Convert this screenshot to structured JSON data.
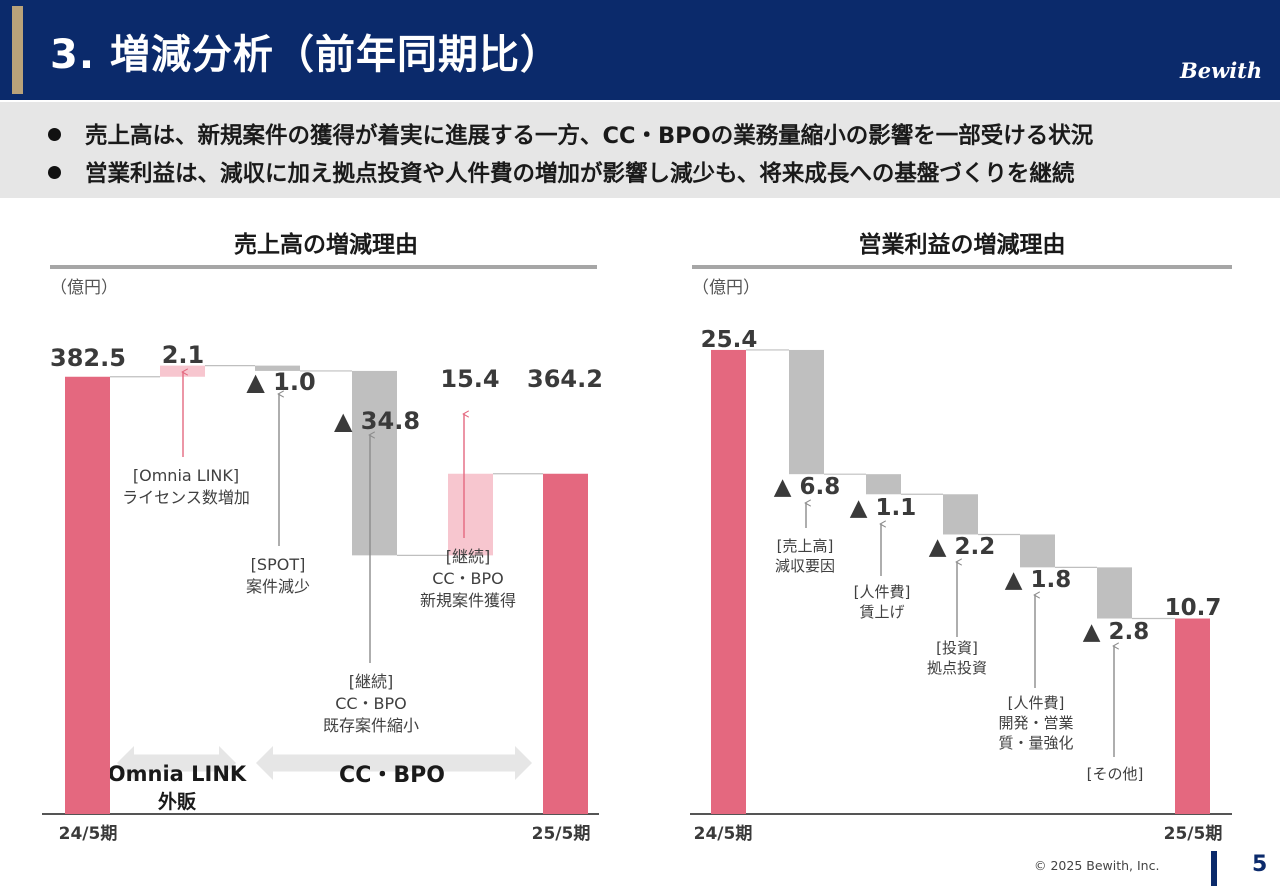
{
  "header": {
    "title": "3. 増減分析（前年同期比）",
    "logo": "Bewith"
  },
  "summary": {
    "line1": "売上高は、新規案件の獲得が着実に進展する一方、CC・BPOの業務量縮小の影響を一部受ける状況",
    "line2": "営業利益は、減収に加え拠点投資や人件費の増加が影響し減少も、将来成長への基盤づくりを継続"
  },
  "colors": {
    "total_bar": "#e4687f",
    "increase_bar": "#f7c6cf",
    "decrease_bar": "#bfbfbf",
    "header_bg": "#0b2a6b",
    "gold": "#b9a27a"
  },
  "chart_data": [
    {
      "type": "bar",
      "subtype": "waterfall",
      "title": "売上高の増減理由",
      "unit_label": "（億円）",
      "categories": [
        "24/5期",
        "[Omnia LINK] ライセンス数増加",
        "[SPOT] 案件減少",
        "[継続] CC・BPO 既存案件縮小",
        "[継続] CC・BPO 新規案件獲得",
        "25/5期"
      ],
      "steps": [
        {
          "kind": "total",
          "value": 382.5,
          "label": "382.5",
          "category": "24/5期"
        },
        {
          "kind": "increase",
          "value": 2.1,
          "label": "2.1",
          "annotation": [
            "[Omnia LINK]",
            "ライセンス数増加"
          ]
        },
        {
          "kind": "decrease",
          "value": -1.0,
          "label": "▲ 1.0",
          "annotation": [
            "[SPOT]",
            "案件減少"
          ]
        },
        {
          "kind": "decrease",
          "value": -34.8,
          "label": "▲ 34.8",
          "annotation": [
            "[継続]",
            "CC・BPO",
            "既存案件縮小"
          ]
        },
        {
          "kind": "increase",
          "value": 15.4,
          "label": "15.4",
          "annotation": [
            "[継続]",
            "CC・BPO",
            "新規案件獲得"
          ]
        },
        {
          "kind": "total",
          "value": 364.2,
          "label": "364.2",
          "category": "25/5期"
        }
      ],
      "segments": [
        {
          "label": [
            "Omnia LINK",
            "外販"
          ]
        },
        {
          "label": [
            "CC・BPO"
          ]
        }
      ]
    },
    {
      "type": "bar",
      "subtype": "waterfall",
      "title": "営業利益の増減理由",
      "unit_label": "（億円）",
      "categories": [
        "24/5期",
        "[売上高] 減収要因",
        "[人件費] 賃上げ",
        "[投資] 拠点投資",
        "[人件費] 開発・営業 質・量強化",
        "[その他]",
        "25/5期"
      ],
      "steps": [
        {
          "kind": "total",
          "value": 25.4,
          "label": "25.4",
          "category": "24/5期"
        },
        {
          "kind": "decrease",
          "value": -6.8,
          "label": "▲ 6.8",
          "annotation": [
            "[売上高]",
            "減収要因"
          ]
        },
        {
          "kind": "decrease",
          "value": -1.1,
          "label": "▲ 1.1",
          "annotation": [
            "[人件費]",
            "賃上げ"
          ]
        },
        {
          "kind": "decrease",
          "value": -2.2,
          "label": "▲ 2.2",
          "annotation": [
            "[投資]",
            "拠点投資"
          ]
        },
        {
          "kind": "decrease",
          "value": -1.8,
          "label": "▲ 1.8",
          "annotation": [
            "[人件費]",
            "開発・営業",
            "質・量強化"
          ]
        },
        {
          "kind": "decrease",
          "value": -2.8,
          "label": "▲ 2.8",
          "annotation": [
            "[その他]"
          ]
        },
        {
          "kind": "total",
          "value": 10.7,
          "label": "10.7",
          "category": "25/5期"
        }
      ]
    }
  ],
  "footer": {
    "copyright": "© 2025 Bewith, Inc.",
    "page": "5"
  }
}
